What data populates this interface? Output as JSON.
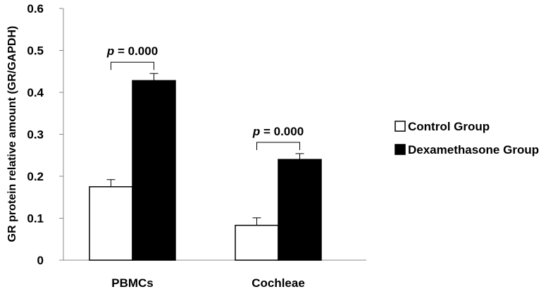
{
  "chart_data": {
    "type": "bar",
    "ylabel": "GR protein relative amount (GR/GAPDH)",
    "xlabel": "",
    "categories": [
      "PBMCs",
      "Cochleae"
    ],
    "ylim": [
      0,
      0.6
    ],
    "yticks": [
      "0",
      "0.1",
      "0.2",
      "0.3",
      "0.4",
      "0.5",
      "0.6"
    ],
    "grid": false,
    "legend_position": "right",
    "series": [
      {
        "name": "Control Group",
        "values": [
          0.175,
          0.083
        ],
        "errors": [
          0.017,
          0.018
        ],
        "fill": "#ffffff"
      },
      {
        "name": "Dexamethasone Group",
        "values": [
          0.428,
          0.24
        ],
        "errors": [
          0.017,
          0.014
        ],
        "fill": "#000000"
      }
    ],
    "annotations": [
      {
        "category": "PBMCs",
        "p_symbol": "p",
        "text": " = 0.000"
      },
      {
        "category": "Cochleae",
        "p_symbol": "p",
        "text": " = 0.000"
      }
    ]
  }
}
